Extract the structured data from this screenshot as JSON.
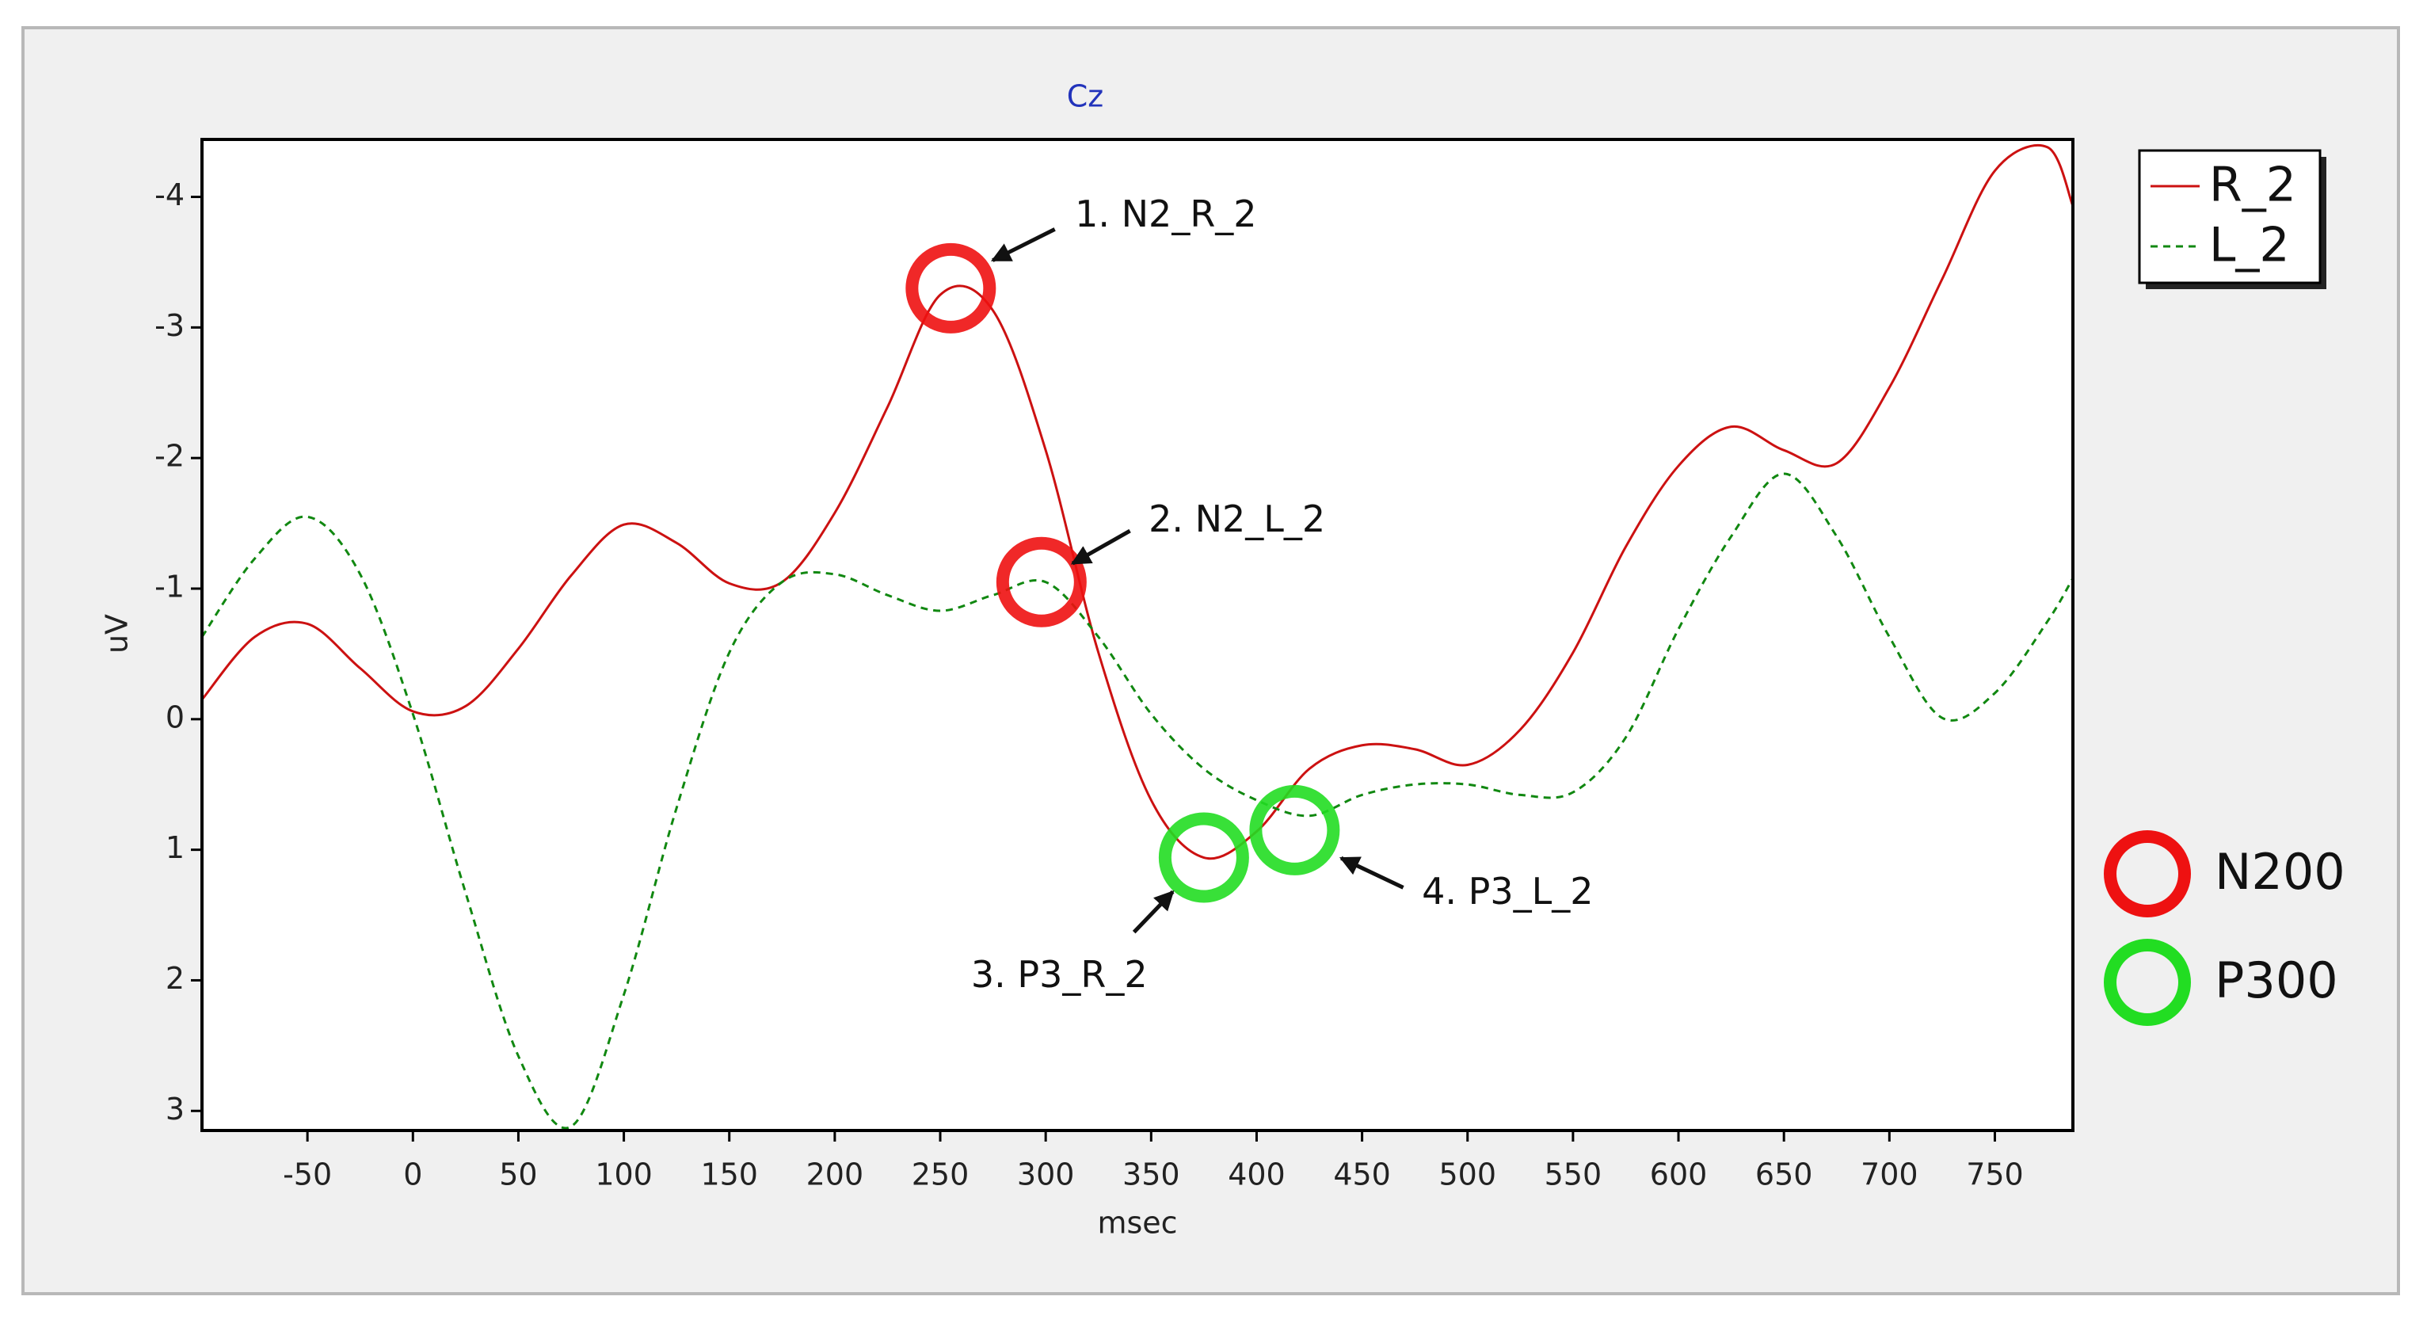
{
  "chart_data": {
    "type": "line",
    "title": "Cz",
    "xlabel": "msec",
    "ylabel": "uV",
    "x": [
      -100,
      -75,
      -50,
      -25,
      0,
      25,
      50,
      75,
      100,
      125,
      150,
      175,
      200,
      225,
      250,
      275,
      300,
      325,
      350,
      375,
      400,
      425,
      450,
      475,
      500,
      525,
      550,
      575,
      600,
      625,
      650,
      675,
      700,
      725,
      750,
      775,
      787
    ],
    "series": [
      {
        "name": "R_2",
        "color": "#cc1111",
        "dash": false,
        "values": [
          -0.15,
          -0.63,
          -0.73,
          -0.39,
          -0.06,
          -0.1,
          -0.54,
          -1.1,
          -1.49,
          -1.35,
          -1.04,
          -1.05,
          -1.58,
          -2.39,
          -3.25,
          -3.13,
          -2.06,
          -0.51,
          0.62,
          1.06,
          0.86,
          0.38,
          0.2,
          0.23,
          0.35,
          0.08,
          -0.51,
          -1.32,
          -1.94,
          -2.24,
          -2.06,
          -1.96,
          -2.54,
          -3.37,
          -4.2,
          -4.38,
          -3.93
        ]
      },
      {
        "name": "L_2",
        "color": "#118811",
        "dash": true,
        "values": [
          -0.63,
          -1.23,
          -1.55,
          -1.11,
          -0.04,
          1.33,
          2.58,
          3.12,
          2.11,
          0.68,
          -0.51,
          -1.05,
          -1.11,
          -0.95,
          -0.83,
          -0.95,
          -1.05,
          -0.63,
          -0.04,
          0.38,
          0.62,
          0.74,
          0.58,
          0.5,
          0.5,
          0.58,
          0.56,
          0.14,
          -0.69,
          -1.4,
          -1.88,
          -1.4,
          -0.63,
          -0.01,
          -0.2,
          -0.75,
          -1.08
        ]
      }
    ],
    "xlim": [
      -100,
      787
    ],
    "xticks": [
      -50,
      0,
      50,
      100,
      150,
      200,
      250,
      300,
      350,
      400,
      450,
      500,
      550,
      600,
      650,
      700,
      750
    ],
    "ylim": [
      -4.44,
      3.15
    ],
    "yticks": [
      -4,
      -3,
      -2,
      -1,
      0,
      1,
      2,
      3
    ],
    "y_inverted": true,
    "legend": "upper right",
    "annotations": [
      {
        "text": "1. N2_R_2",
        "x": 255,
        "y": -3.3,
        "color": "#ee1111"
      },
      {
        "text": "2. N2_L_2",
        "x": 298,
        "y": -1.05,
        "color": "#ee1111"
      },
      {
        "text": "3. P3_R_2",
        "x": 375,
        "y": 1.06,
        "color": "#22dd22"
      },
      {
        "text": "4. P3_L_2",
        "x": 418,
        "y": 0.85,
        "color": "#22dd22"
      }
    ],
    "peak_legend": [
      {
        "name": "N200",
        "color": "#ee1111"
      },
      {
        "name": "P300",
        "color": "#22dd22"
      }
    ]
  }
}
